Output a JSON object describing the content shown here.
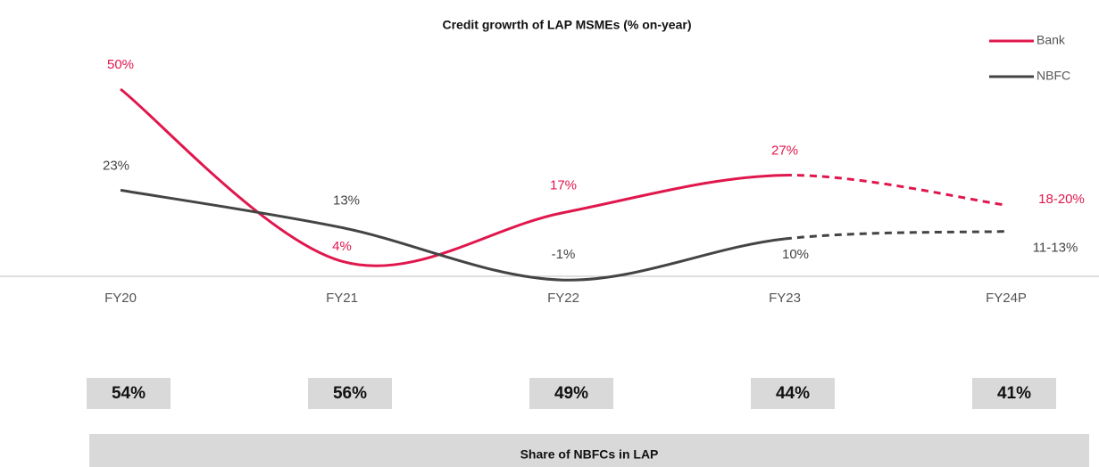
{
  "chart_data": {
    "type": "line",
    "title": "Credit growrth of LAP MSMEs (% on-year)",
    "categories": [
      "FY20",
      "FY21",
      "FY22",
      "FY23",
      "FY24P"
    ],
    "series": [
      {
        "name": "Bank",
        "color": "#e0174d",
        "values": [
          50,
          4,
          17,
          27,
          19
        ],
        "value_labels": [
          "50%",
          "4%",
          "17%",
          "27%",
          "18-20%"
        ]
      },
      {
        "name": "NBFC",
        "color": "#444444",
        "values": [
          23,
          13,
          -1,
          10,
          12
        ],
        "value_labels": [
          "23%",
          "13%",
          "-1%",
          "10%",
          "11-13%"
        ]
      }
    ],
    "ylim": [
      -5,
      60
    ],
    "legend": "top-right",
    "share": {
      "title": "Share of NBFCs in LAP",
      "values": [
        54,
        56,
        49,
        44,
        41
      ],
      "value_labels": [
        "54%",
        "56%",
        "49%",
        "44%",
        "41%"
      ]
    }
  }
}
